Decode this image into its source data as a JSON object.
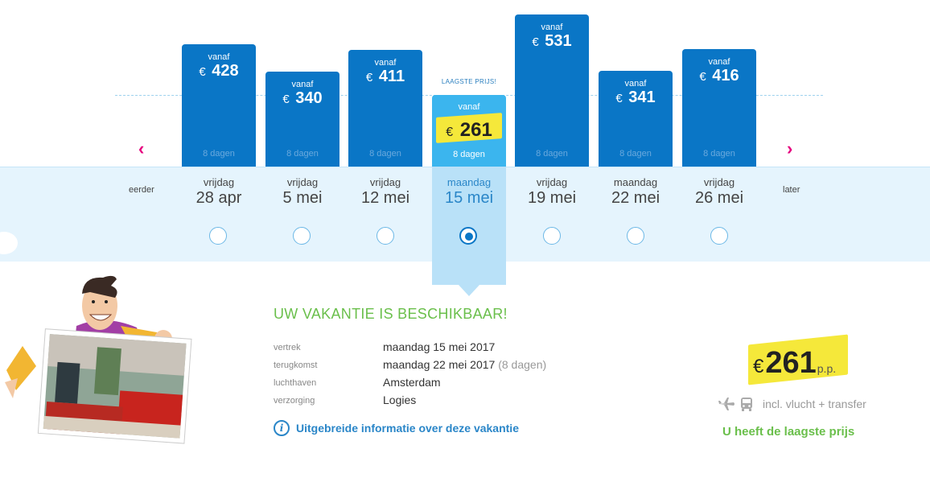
{
  "calendar": {
    "earlier_label": "eerder",
    "later_label": "later",
    "lowest_tag": "LAAGSTE PRIJS!",
    "currency": "€",
    "dates": [
      {
        "weekday": "vrijdag",
        "date": "28 apr",
        "vanaf": "vanaf",
        "price": "428",
        "days": "8 dagen",
        "selected": false
      },
      {
        "weekday": "vrijdag",
        "date": "5 mei",
        "vanaf": "vanaf",
        "price": "340",
        "days": "8 dagen",
        "selected": false
      },
      {
        "weekday": "vrijdag",
        "date": "12 mei",
        "vanaf": "vanaf",
        "price": "411",
        "days": "8 dagen",
        "selected": false
      },
      {
        "weekday": "maandag",
        "date": "15 mei",
        "vanaf": "vanaf",
        "price": "261",
        "days": "8 dagen",
        "selected": true
      },
      {
        "weekday": "vrijdag",
        "date": "19 mei",
        "vanaf": "vanaf",
        "price": "531",
        "days": "8 dagen",
        "selected": false
      },
      {
        "weekday": "maandag",
        "date": "22 mei",
        "vanaf": "vanaf",
        "price": "341",
        "days": "8 dagen",
        "selected": false
      },
      {
        "weekday": "vrijdag",
        "date": "26 mei",
        "vanaf": "vanaf",
        "price": "416",
        "days": "8 dagen",
        "selected": false
      }
    ],
    "colors": {
      "bar": "#0a76c6",
      "selected_bar": "#3bb5ee",
      "arrow": "#e6007e",
      "sticker": "#f5e83a"
    }
  },
  "details": {
    "title": "UW VAKANTIE IS BESCHIKBAAR!",
    "rows": [
      {
        "label": "vertrek",
        "value": "maandag 15 mei 2017",
        "extra": ""
      },
      {
        "label": "terugkomst",
        "value": "maandag 22 mei 2017",
        "extra": "(8 dagen)"
      },
      {
        "label": "luchthaven",
        "value": "Amsterdam",
        "extra": ""
      },
      {
        "label": "verzorging",
        "value": "Logies",
        "extra": ""
      }
    ],
    "info_link": "Uitgebreide informatie over deze vakantie"
  },
  "price_box": {
    "currency": "€",
    "price": "261",
    "per_person": "p.p.",
    "includes": "incl. vlucht + transfer",
    "lowest_message": "U heeft de laagste prijs"
  }
}
